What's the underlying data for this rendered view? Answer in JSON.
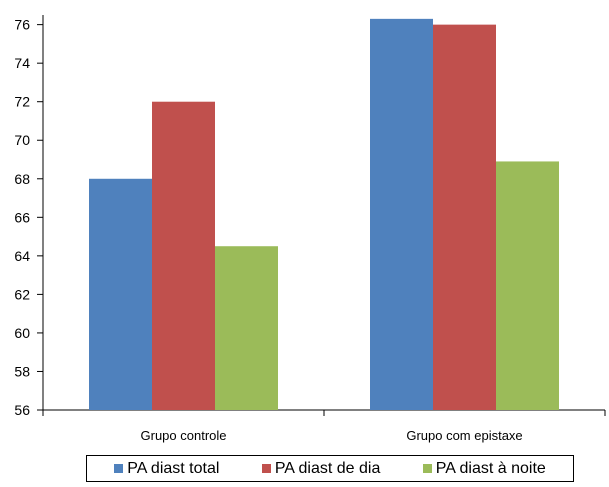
{
  "chart_data": {
    "type": "bar",
    "title": "",
    "xlabel": "",
    "ylabel": "",
    "categories": [
      "Grupo controle",
      "Grupo com epistaxe"
    ],
    "series": [
      {
        "name": "PA diast total",
        "values": [
          68.0,
          76.3
        ],
        "color": "#4f81bd"
      },
      {
        "name": "PA diast de dia",
        "values": [
          72.0,
          76.0
        ],
        "color": "#c0504d"
      },
      {
        "name": "PA diast à noite",
        "values": [
          64.5,
          68.9
        ],
        "color": "#9bbb59"
      }
    ],
    "ylim": [
      56,
      76.5
    ],
    "yticks": [
      56,
      58,
      60,
      62,
      64,
      66,
      68,
      70,
      72,
      74,
      76
    ],
    "grid": false,
    "legend_position": "bottom"
  }
}
